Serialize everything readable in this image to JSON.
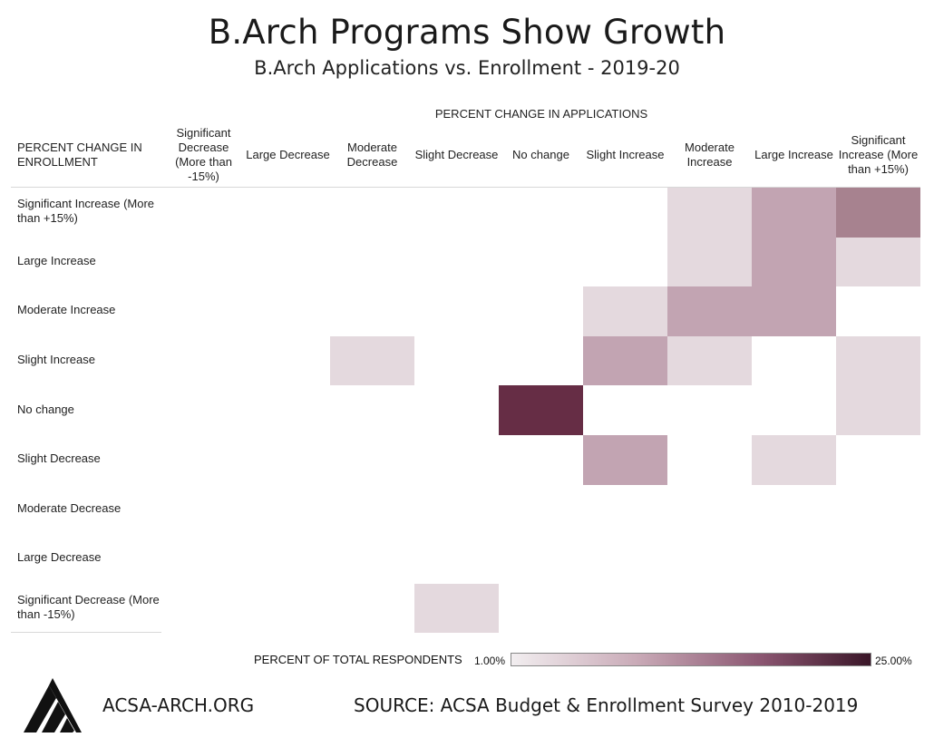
{
  "header": {
    "title": "B.Arch Programs Show Growth",
    "subtitle": "B.Arch Applications vs. Enrollment - 2019-20"
  },
  "footer": {
    "site": "ACSA-ARCH.ORG",
    "source": "SOURCE: ACSA Budget & Enrollment Survey 2010-2019"
  },
  "colors": {
    "low": "#e4d9de",
    "mid": "#c2a4b2",
    "high": "#a7828f",
    "max": "#662d45"
  },
  "chart_data": {
    "type": "heatmap",
    "x_title": "PERCENT CHANGE IN APPLICATIONS",
    "y_title": "PERCENT CHANGE IN\nENROLLMENT",
    "x_categories": [
      "Significant Decrease (More than -15%)",
      "Large Decrease",
      "Moderate Decrease",
      "Slight Decrease",
      "No change",
      "Slight Increase",
      "Moderate Increase",
      "Large Increase",
      "Significant Increase (More than +15%)"
    ],
    "y_categories": [
      "Significant Increase (More than +15%)",
      "Large Increase",
      "Moderate Increase",
      "Slight Increase",
      "No change",
      "Slight Decrease",
      "Moderate Decrease",
      "Large Decrease",
      "Significant Decrease (More than -15%)"
    ],
    "values": [
      [
        0,
        0,
        0,
        0,
        0,
        0,
        3,
        6,
        10
      ],
      [
        0,
        0,
        0,
        0,
        0,
        0,
        3,
        6,
        3
      ],
      [
        0,
        0,
        0,
        0,
        0,
        3,
        7,
        6,
        0
      ],
      [
        0,
        0,
        3,
        0,
        0,
        7,
        3,
        0,
        3
      ],
      [
        0,
        0,
        0,
        0,
        25,
        0,
        0,
        0,
        3
      ],
      [
        0,
        0,
        0,
        0,
        0,
        7,
        0,
        3,
        0
      ],
      [
        0,
        0,
        0,
        0,
        0,
        0,
        0,
        0,
        0
      ],
      [
        0,
        0,
        0,
        0,
        0,
        0,
        0,
        0,
        0
      ],
      [
        0,
        0,
        0,
        3,
        0,
        0,
        0,
        0,
        0
      ]
    ],
    "unit": "%",
    "legend": {
      "title": "PERCENT OF TOTAL RESPONDENTS",
      "min_label": "1.00%",
      "max_label": "25.00%",
      "min": 1,
      "max": 25
    }
  }
}
